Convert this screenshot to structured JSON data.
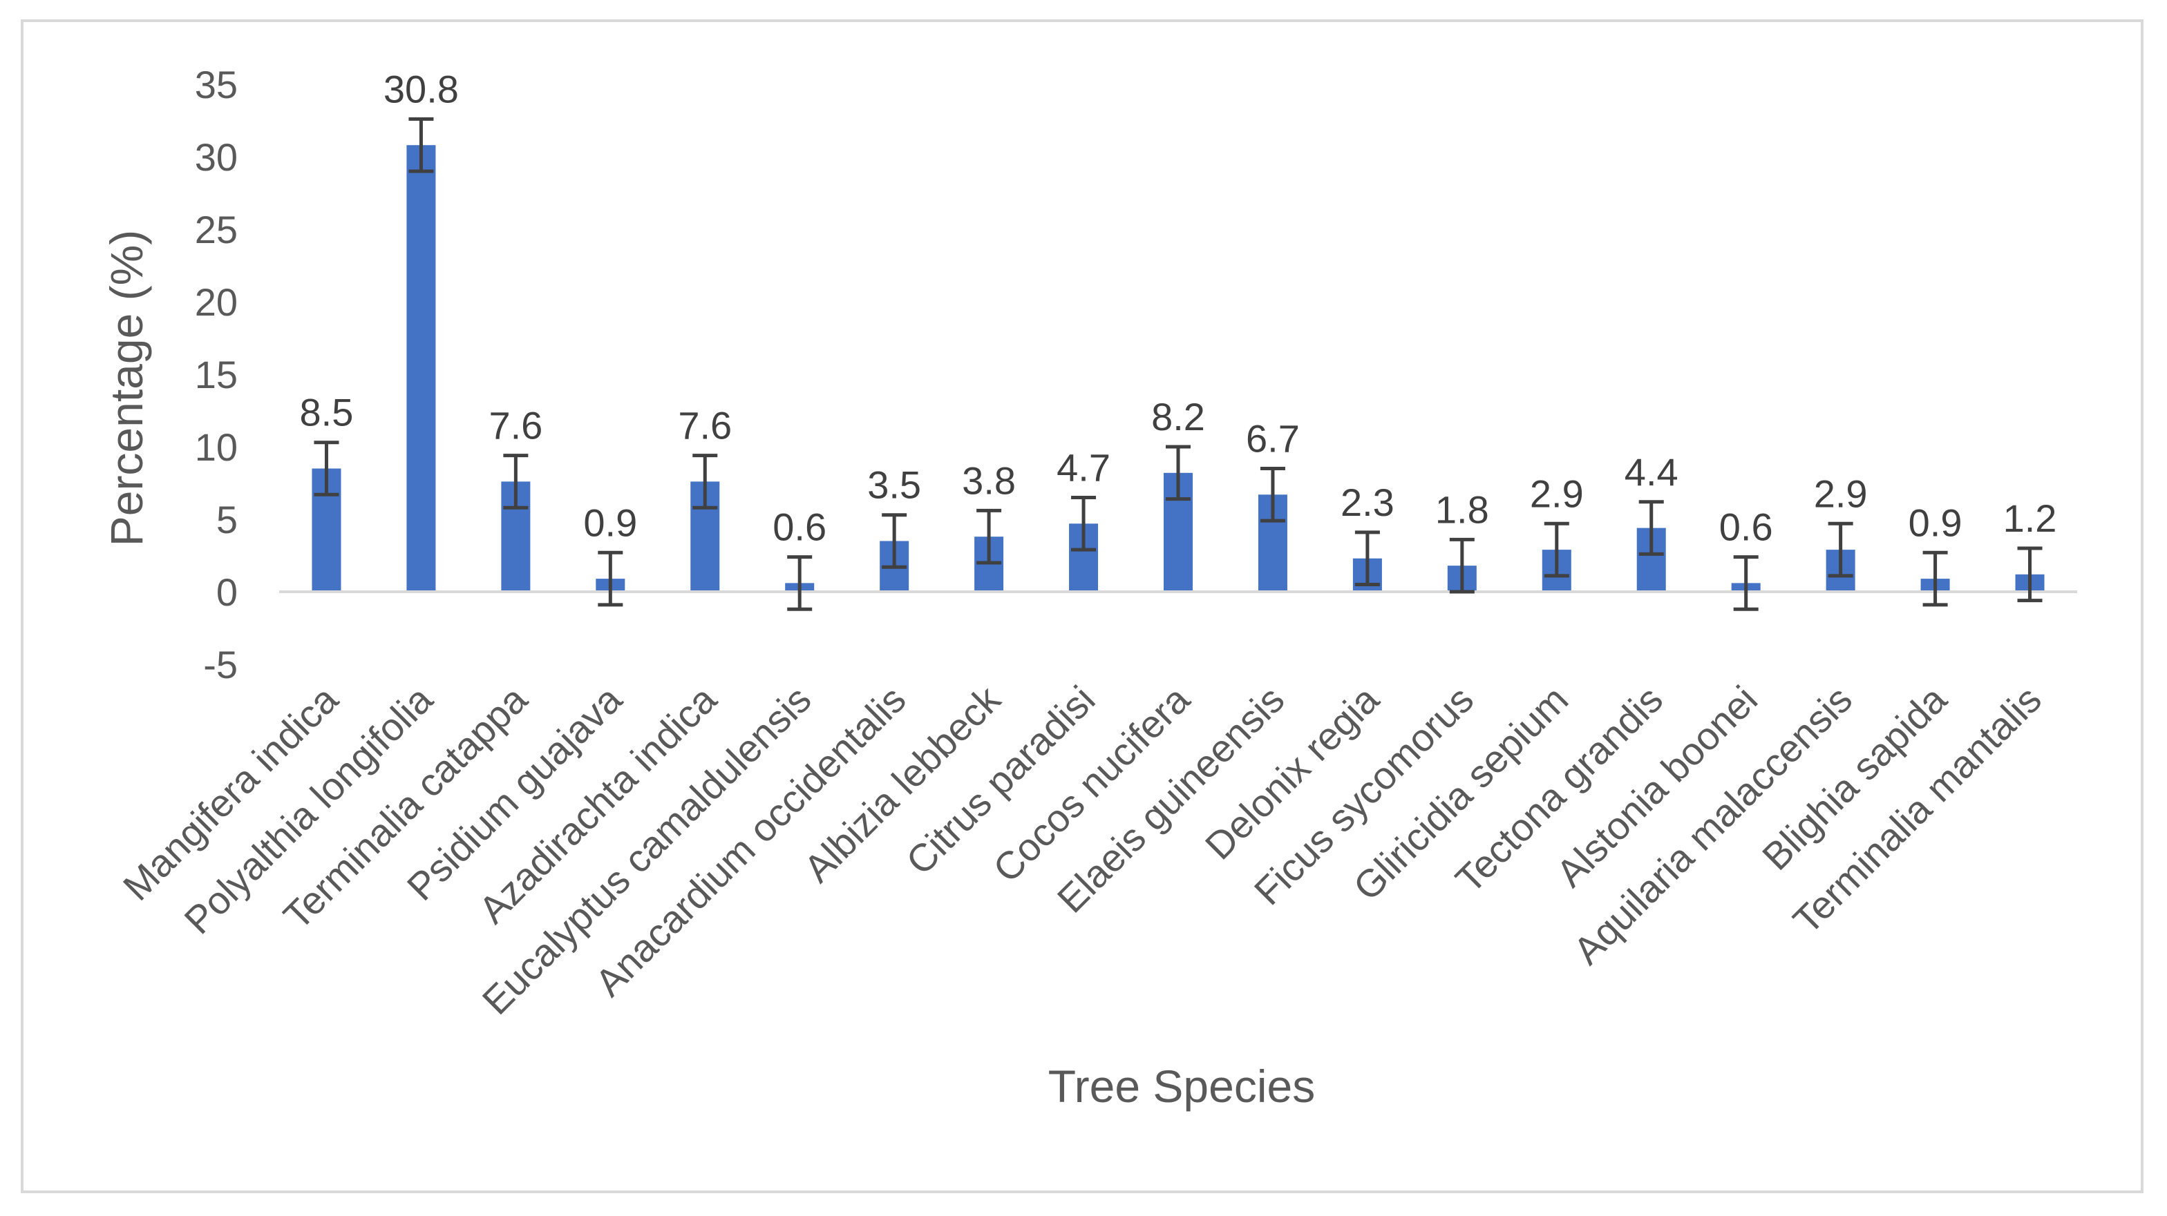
{
  "chart_data": {
    "type": "bar",
    "title": "",
    "xlabel": "Tree Species",
    "ylabel": "Percentage (%)",
    "ylim": [
      -5,
      35
    ],
    "yticks": [
      35,
      30,
      25,
      20,
      15,
      10,
      5,
      0,
      -5
    ],
    "grid": false,
    "legend": "none",
    "bar_color": "#4472c4",
    "error_bar_color": "#404040",
    "error_bar": 1.8,
    "categories": [
      "Mangifera indica",
      "Polyalthia longifolia",
      "Terminalia catappa",
      "Psidium guajava",
      "Azadirachta indica",
      "Eucalyptus camaldulensis",
      "Anacardium occidentalis",
      "Albizia lebbeck",
      "Citrus paradisi",
      "Cocos nucifera",
      "Elaeis guineensis",
      "Delonix regia",
      "Ficus sycomorus",
      "Gliricidia sepium",
      "Tectona grandis",
      "Alstonia boonei",
      "Aquilaria malaccensis",
      "Blighia sapida",
      "Terminalia mantalis"
    ],
    "values": [
      8.5,
      30.8,
      7.6,
      0.9,
      7.6,
      0.6,
      3.5,
      3.8,
      4.7,
      8.2,
      6.7,
      2.3,
      1.8,
      2.9,
      4.4,
      0.6,
      2.9,
      0.9,
      1.2
    ],
    "data_labels": [
      "8.5",
      "30.8",
      "7.6",
      "0.9",
      "7.6",
      "0.6",
      "3.5",
      "3.8",
      "4.7",
      "8.2",
      "6.7",
      "2.3",
      "1.8",
      "2.9",
      "4.4",
      "0.6",
      "2.9",
      "0.9",
      "1.2"
    ]
  }
}
